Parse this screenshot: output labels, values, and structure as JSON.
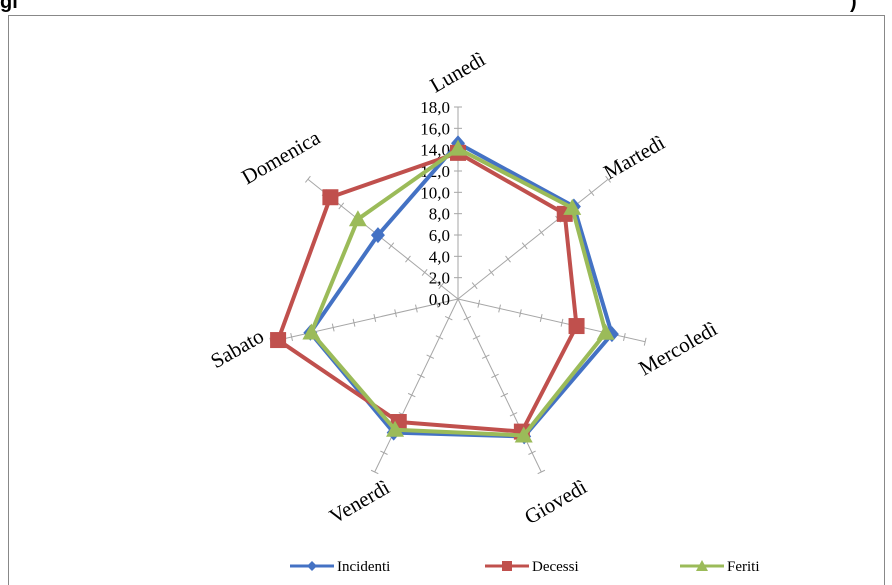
{
  "header_fragment": {
    "left": "gi",
    "right": ")"
  },
  "chart_data": {
    "type": "radar",
    "categories": [
      "Lunedì",
      "Martedì",
      "Mercoledì",
      "Giovedì",
      "Venerdì",
      "Sabato",
      "Domenica"
    ],
    "rlim": [
      0,
      18
    ],
    "ticks": [
      "0,0",
      "2,0",
      "4,0",
      "6,0",
      "8,0",
      "10,0",
      "12,0",
      "14,0",
      "16,0",
      "18,0"
    ],
    "tick_values": [
      0,
      2,
      4,
      6,
      8,
      10,
      12,
      14,
      16,
      18
    ],
    "series": [
      {
        "name": "Incidenti",
        "color": "#4472C4",
        "marker": "diamond",
        "values": [
          14.6,
          13.9,
          14.8,
          14.3,
          13.9,
          14.2,
          9.6
        ]
      },
      {
        "name": "Decessi",
        "color": "#C0504D",
        "marker": "square",
        "values": [
          13.7,
          12.8,
          11.4,
          13.8,
          12.8,
          17.3,
          15.3
        ]
      },
      {
        "name": "Feriti",
        "color": "#9BBB59",
        "marker": "triangle",
        "values": [
          14.1,
          13.7,
          14.2,
          14.2,
          13.6,
          14.1,
          12.0
        ]
      }
    ],
    "legend_position": "bottom",
    "grid": false
  }
}
